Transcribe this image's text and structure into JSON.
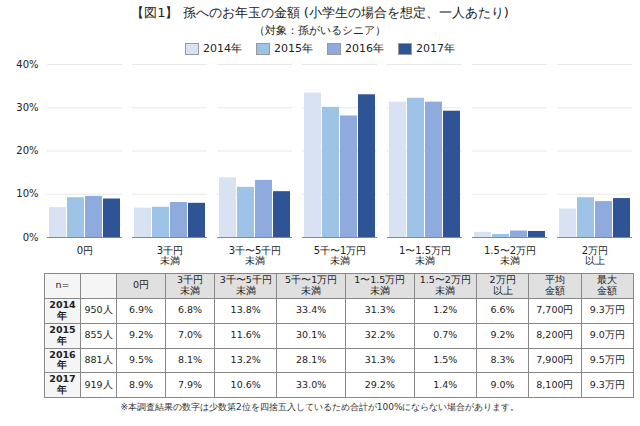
{
  "chart_data": {
    "type": "bar",
    "title": "【図1】 孫へのお年玉の金額 (小学生の場合を想定、一人あたり)",
    "subtitle": "（対象：孫がいるシニア）",
    "categories": [
      "0円",
      "3千円\n未満",
      "3千〜5千円\n未満",
      "5千〜1万円\n未満",
      "1〜1.5万円\n未満",
      "1.5〜2万円\n未満",
      "2万円\n以上"
    ],
    "series": [
      {
        "name": "2014年",
        "color": "#d9e2f3",
        "values": [
          6.9,
          6.8,
          13.8,
          33.4,
          31.3,
          1.2,
          6.6
        ]
      },
      {
        "name": "2015年",
        "color": "#9dc3e6",
        "values": [
          9.2,
          7.0,
          11.6,
          30.1,
          32.2,
          0.7,
          9.2
        ]
      },
      {
        "name": "2016年",
        "color": "#8faadc",
        "values": [
          9.5,
          8.1,
          13.2,
          28.1,
          31.3,
          1.5,
          8.3
        ]
      },
      {
        "name": "2017年",
        "color": "#2f5496",
        "values": [
          8.9,
          7.9,
          10.6,
          33.0,
          29.2,
          1.4,
          9.0
        ]
      }
    ],
    "ylim": [
      0,
      40
    ],
    "yticks": [
      {
        "value": 0,
        "label": "0%"
      },
      {
        "value": 10,
        "label": "10%"
      },
      {
        "value": 20,
        "label": "20%"
      },
      {
        "value": 30,
        "label": "30%"
      },
      {
        "value": 40,
        "label": "40%"
      }
    ],
    "grid": true,
    "legend": "top",
    "table": {
      "header": [
        "n=",
        null,
        "0円",
        "3千円\n未満",
        "3千〜5千円\n未満",
        "5千〜1万円\n未満",
        "1〜1.5万円\n未満",
        "1.5〜2万円\n未満",
        "2万円\n以上",
        "平均\n金額",
        "最大\n金額"
      ],
      "rows": [
        {
          "label": "2014年",
          "n": "950人",
          "cells": [
            "6.9%",
            "6.8%",
            "13.8%",
            "33.4%",
            "31.3%",
            "1.2%",
            "6.6%",
            "7,700円",
            "9.3万円"
          ]
        },
        {
          "label": "2015年",
          "n": "855人",
          "cells": [
            "9.2%",
            "7.0%",
            "11.6%",
            "30.1%",
            "32.2%",
            "0.7%",
            "9.2%",
            "8,200円",
            "9.0万円"
          ]
        },
        {
          "label": "2016年",
          "n": "881人",
          "cells": [
            "9.5%",
            "8.1%",
            "13.2%",
            "28.1%",
            "31.3%",
            "1.5%",
            "8.3%",
            "7,900円",
            "9.5万円"
          ]
        },
        {
          "label": "2017年",
          "n": "919人",
          "cells": [
            "8.9%",
            "7.9%",
            "10.6%",
            "33.0%",
            "29.2%",
            "1.4%",
            "9.0%",
            "8,100円",
            "9.3万円"
          ]
        }
      ]
    },
    "footnote": "※本調査結果の数字は少数第2位を四捨五入しているため合計が100%にならない場合があります。"
  }
}
